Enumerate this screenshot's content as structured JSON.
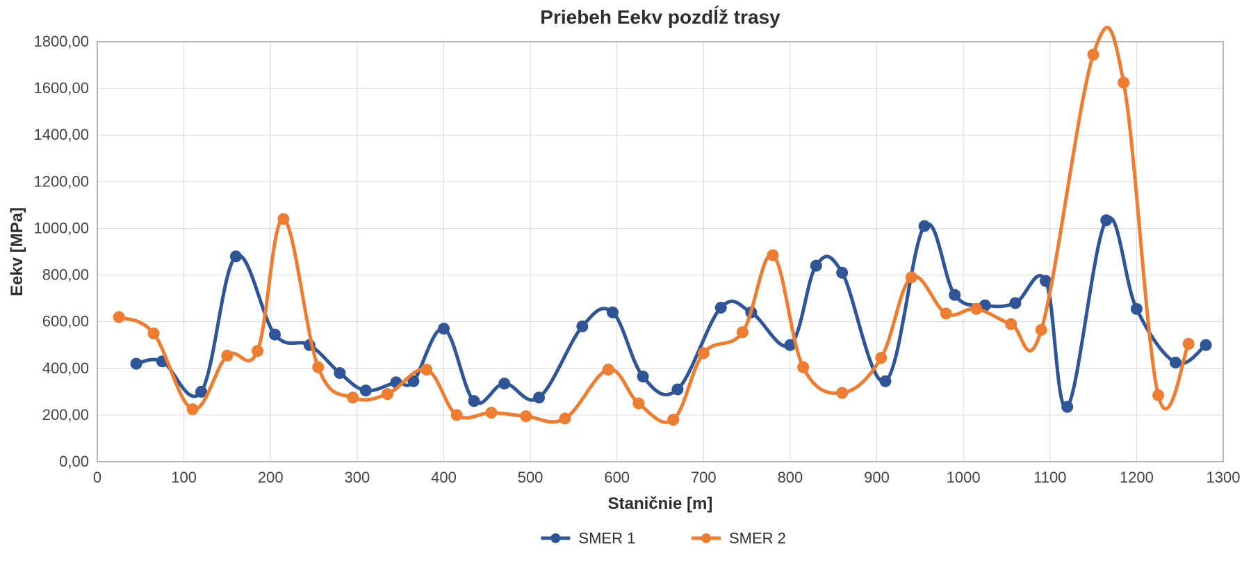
{
  "chart": {
    "type": "line",
    "title": "Priebeh Eekv pozdĺž trasy",
    "title_fontsize": 28,
    "title_fontweight": "bold",
    "background_color": "#ffffff",
    "plot_border_color": "#b7b7b7",
    "grid_color": "#d9d9d9",
    "grid_width": 1,
    "plot_border_width": 2,
    "xlabel": "Staničnie [m]",
    "ylabel": "Eekv [MPa]",
    "label_fontsize": 24,
    "tick_fontsize": 22,
    "xlim": [
      0,
      1300
    ],
    "xtick_step": 100,
    "ylim": [
      0,
      1800
    ],
    "ytick_step": 200,
    "ytick_decimals": 2,
    "marker_radius": 8,
    "line_width": 5,
    "curve_smoothing": 0.18,
    "legend": {
      "position": "bottom-center",
      "fontsize": 22,
      "line_length": 42,
      "marker_radius": 7,
      "gap": 90
    },
    "series": [
      {
        "name": "SMER 1",
        "color": "#2f5597",
        "x": [
          45,
          75,
          120,
          160,
          205,
          245,
          280,
          310,
          345,
          365,
          400,
          435,
          470,
          510,
          560,
          595,
          630,
          670,
          720,
          755,
          800,
          830,
          860,
          910,
          955,
          990,
          1025,
          1060,
          1095,
          1120,
          1165,
          1200,
          1245,
          1280
        ],
        "y": [
          420,
          430,
          300,
          880,
          545,
          500,
          380,
          305,
          340,
          345,
          570,
          260,
          335,
          275,
          580,
          640,
          365,
          310,
          660,
          640,
          500,
          840,
          810,
          345,
          1010,
          715,
          670,
          680,
          775,
          235,
          1035,
          655,
          425,
          500
        ]
      },
      {
        "name": "SMER 2",
        "color": "#ed7d31",
        "x": [
          25,
          65,
          110,
          150,
          185,
          215,
          255,
          295,
          335,
          380,
          415,
          455,
          495,
          540,
          590,
          625,
          665,
          700,
          745,
          780,
          815,
          860,
          905,
          940,
          980,
          1015,
          1055,
          1090,
          1150,
          1185,
          1225,
          1260
        ],
        "y": [
          620,
          550,
          225,
          455,
          475,
          1040,
          405,
          275,
          290,
          395,
          200,
          210,
          195,
          185,
          395,
          250,
          180,
          465,
          555,
          885,
          405,
          295,
          445,
          790,
          635,
          655,
          590,
          565,
          1745,
          1625,
          285,
          505
        ]
      }
    ]
  }
}
